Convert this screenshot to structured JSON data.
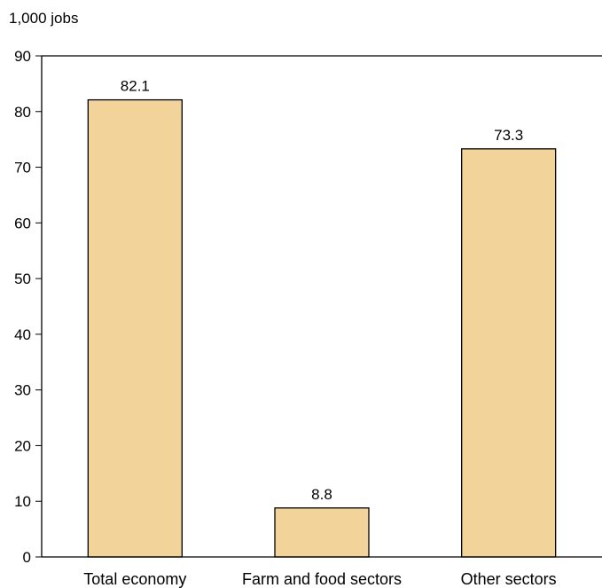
{
  "chart_data": {
    "type": "bar",
    "unit_label": "1,000 jobs",
    "categories": [
      "Total economy",
      "Farm and food sectors",
      "Other sectors"
    ],
    "values": [
      82.1,
      8.8,
      73.3
    ],
    "value_labels": [
      "82.1",
      "8.8",
      "73.3"
    ],
    "ylim": [
      0,
      90
    ],
    "yticks": [
      0,
      10,
      20,
      30,
      40,
      50,
      60,
      70,
      80,
      90
    ],
    "xlabel": "",
    "ylabel": "",
    "grid": false,
    "bar_color": "#f2d49b",
    "bar_edge_color": "#000000"
  }
}
